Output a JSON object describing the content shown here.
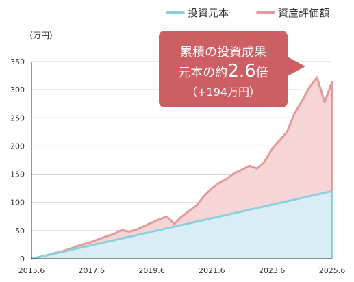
{
  "chart_data": {
    "type": "area",
    "unit_label": "（万円）",
    "x_tick_labels": [
      "2015.6",
      "2017.6",
      "2019.6",
      "2021.6",
      "2023.6",
      "2025.6"
    ],
    "x_start": "2015-06",
    "x_end": "2025-06",
    "ylim": [
      0,
      350
    ],
    "y_ticks": [
      0,
      50,
      100,
      150,
      200,
      250,
      300,
      350
    ],
    "grid": "horizontal",
    "legend_position": "top-right",
    "series": [
      {
        "name": "投資元本",
        "color": "#8ccfdc",
        "fill": "#d9eef4",
        "x": [
          "2015-06",
          "2025-06"
        ],
        "values": [
          0,
          120
        ]
      },
      {
        "name": "資産評価額",
        "color": "#e39a9a",
        "fill": "#f5d5d5",
        "x": [
          "2015-06",
          "2015-09",
          "2015-12",
          "2016-03",
          "2016-06",
          "2016-09",
          "2016-12",
          "2017-03",
          "2017-06",
          "2017-09",
          "2017-12",
          "2018-03",
          "2018-06",
          "2018-09",
          "2018-12",
          "2019-03",
          "2019-06",
          "2019-09",
          "2019-12",
          "2020-03",
          "2020-06",
          "2020-09",
          "2020-12",
          "2021-03",
          "2021-06",
          "2021-09",
          "2021-12",
          "2022-03",
          "2022-06",
          "2022-09",
          "2022-12",
          "2023-03",
          "2023-06",
          "2023-09",
          "2023-12",
          "2024-03",
          "2024-06",
          "2024-09",
          "2024-12",
          "2025-03",
          "2025-06"
        ],
        "values": [
          0,
          3,
          6,
          10,
          13,
          17,
          22,
          26,
          30,
          35,
          40,
          44,
          51,
          48,
          52,
          58,
          64,
          70,
          75,
          62,
          75,
          85,
          95,
          112,
          125,
          135,
          142,
          152,
          158,
          165,
          160,
          172,
          195,
          210,
          225,
          258,
          280,
          305,
          322,
          278,
          314
        ]
      }
    ],
    "callout": {
      "line1": "累積の投資成果",
      "line2_prefix": "元本の約",
      "line2_value": "2.6",
      "line2_suffix": "倍",
      "line3": "（+194万円）",
      "color": "#cd5e63"
    }
  }
}
